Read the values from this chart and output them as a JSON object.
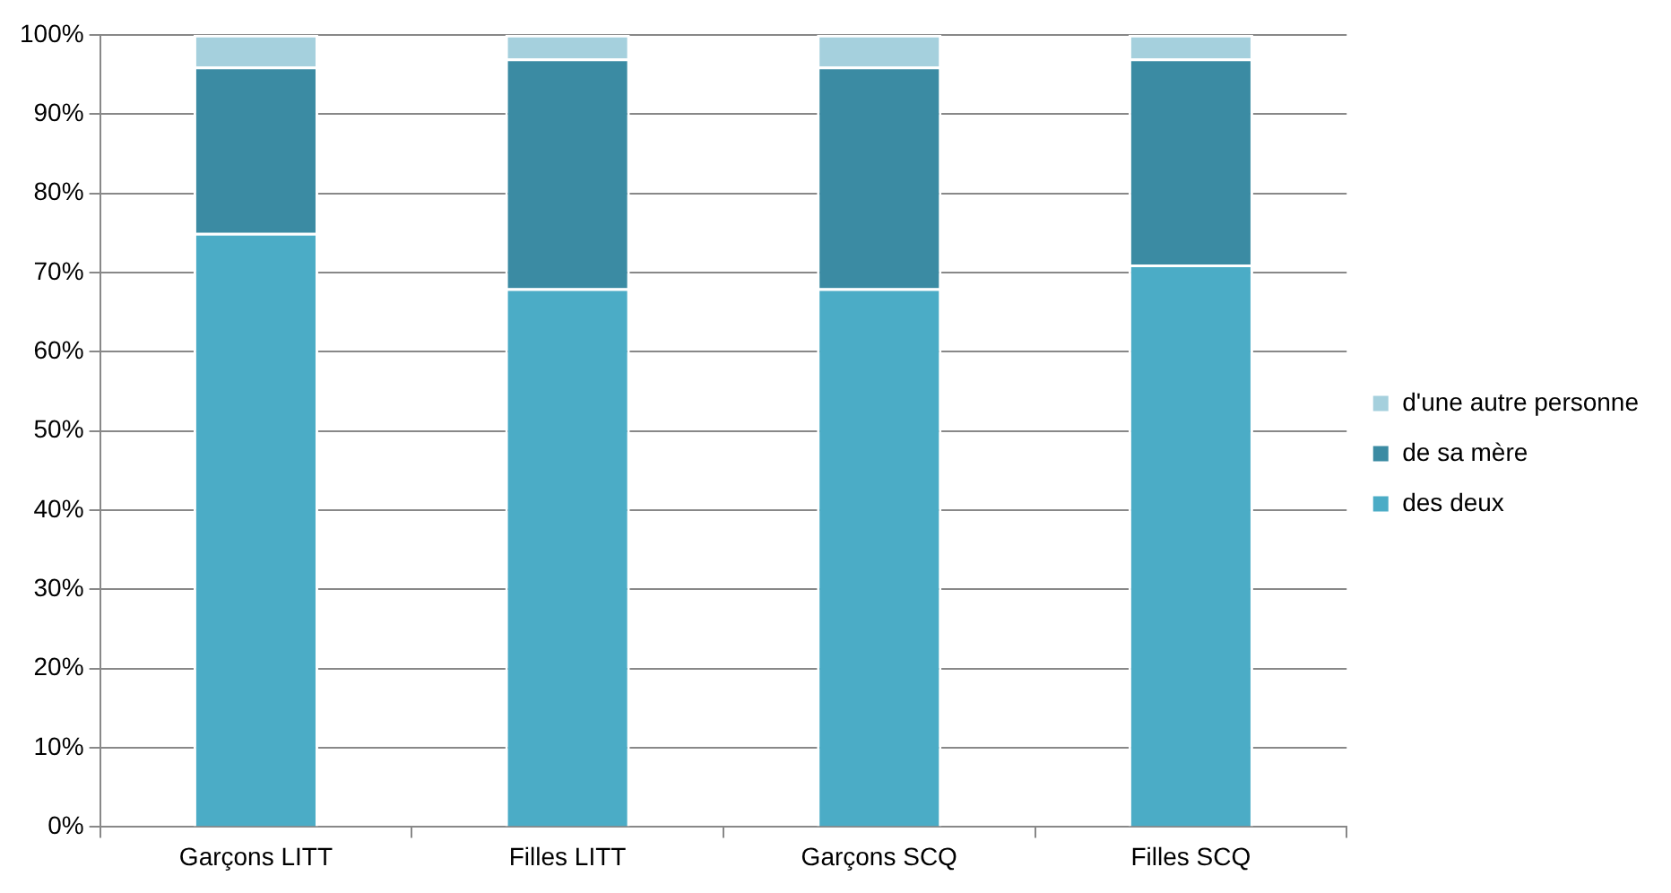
{
  "chart_data": {
    "type": "bar",
    "stacked": true,
    "categories": [
      "Garçons LITT",
      "Filles LITT",
      "Garçons SCQ",
      "Filles SCQ"
    ],
    "series": [
      {
        "name": "des deux",
        "color": "#4bacc6",
        "values": [
          75,
          68,
          68,
          71
        ]
      },
      {
        "name": "de sa mère",
        "color": "#3b8ba3",
        "values": [
          21,
          29,
          28,
          26
        ]
      },
      {
        "name": "d'une autre personne",
        "color": "#a5d0dd",
        "values": [
          4,
          3,
          4,
          3
        ]
      }
    ],
    "ylim": [
      0,
      100
    ],
    "yticks": [
      {
        "value": 0,
        "label": "0%"
      },
      {
        "value": 10,
        "label": "10%"
      },
      {
        "value": 20,
        "label": "20%"
      },
      {
        "value": 30,
        "label": "30%"
      },
      {
        "value": 40,
        "label": "40%"
      },
      {
        "value": 50,
        "label": "50%"
      },
      {
        "value": 60,
        "label": "60%"
      },
      {
        "value": 70,
        "label": "70%"
      },
      {
        "value": 80,
        "label": "80%"
      },
      {
        "value": 90,
        "label": "90%"
      },
      {
        "value": 100,
        "label": "100%"
      }
    ],
    "grid": "y",
    "legend": "right"
  }
}
